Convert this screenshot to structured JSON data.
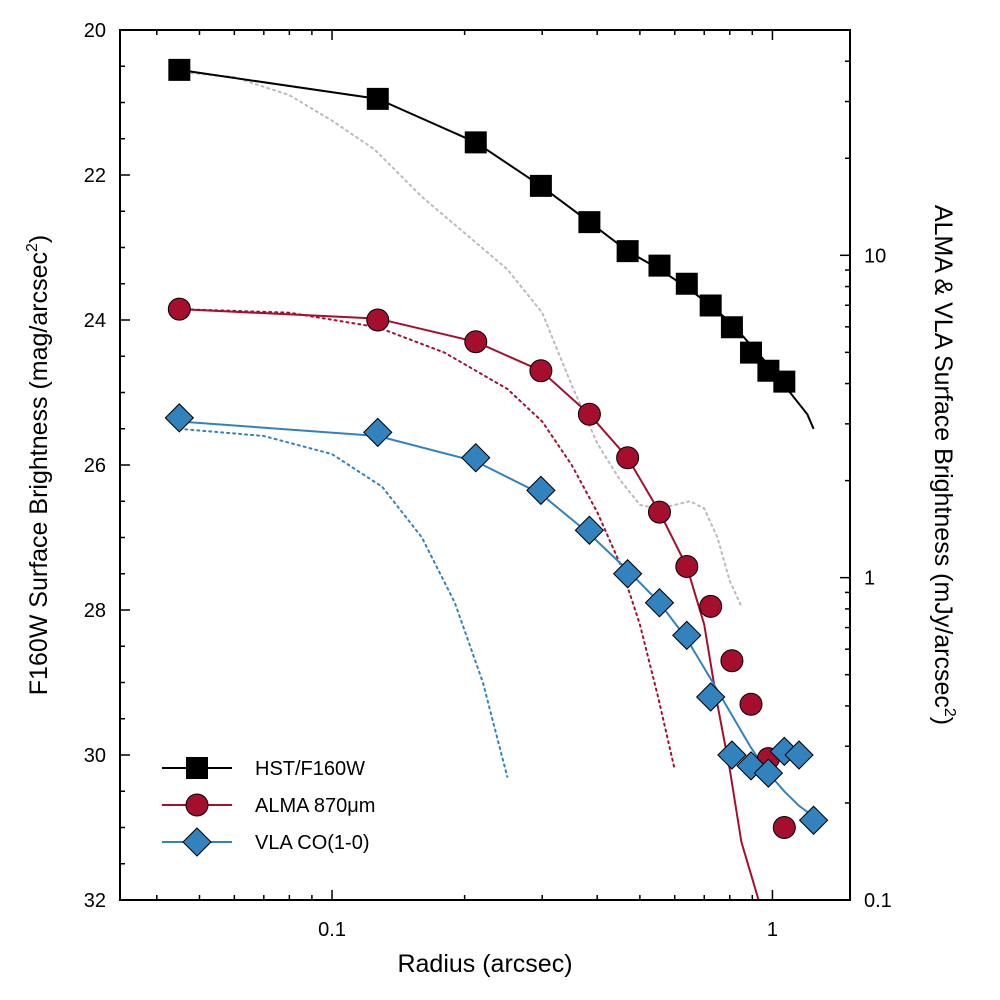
{
  "chart_data": {
    "type": "line",
    "xlabel": "Radius (arcsec)",
    "ylabel_left": "F160W Surface Brightness (mag/arcsec",
    "ylabel_left_sup": "2",
    "ylabel_left_end": ")",
    "ylabel_right": "ALMA & VLA Surface Brightness (mJy/arcsec",
    "ylabel_right_sup": "2",
    "ylabel_right_end": ")",
    "xscale": "log",
    "xlim": [
      0.033,
      1.5
    ],
    "ylim_left": [
      32,
      20
    ],
    "ylim_right": [
      0.1,
      50
    ],
    "x_ticks": [
      {
        "value": 0.1,
        "label": "0.1"
      },
      {
        "value": 1,
        "label": "1"
      }
    ],
    "y_left_ticks": [
      {
        "value": 20,
        "label": "20"
      },
      {
        "value": 22,
        "label": "22"
      },
      {
        "value": 24,
        "label": "24"
      },
      {
        "value": 26,
        "label": "26"
      },
      {
        "value": 28,
        "label": "28"
      },
      {
        "value": 30,
        "label": "30"
      },
      {
        "value": 32,
        "label": "32"
      }
    ],
    "y_right_ticks": [
      {
        "value": 0.1,
        "label": "0.1"
      },
      {
        "value": 1,
        "label": "1"
      },
      {
        "value": 10,
        "label": "10"
      }
    ],
    "legend_position": "bottom-left",
    "series": [
      {
        "name": "HST/F160W",
        "color": "#000000",
        "marker": "square",
        "points": [
          [
            0.045,
            20.55
          ],
          [
            0.127,
            20.95
          ],
          [
            0.212,
            21.55
          ],
          [
            0.298,
            22.15
          ],
          [
            0.384,
            22.65
          ],
          [
            0.469,
            23.05
          ],
          [
            0.554,
            23.25
          ],
          [
            0.639,
            23.5
          ],
          [
            0.724,
            23.8
          ],
          [
            0.809,
            24.1
          ],
          [
            0.894,
            24.45
          ],
          [
            0.979,
            24.7
          ],
          [
            1.064,
            24.85
          ]
        ],
        "fit": [
          [
            0.045,
            20.55
          ],
          [
            0.127,
            20.95
          ],
          [
            0.212,
            21.55
          ],
          [
            0.298,
            22.15
          ],
          [
            0.384,
            22.65
          ],
          [
            0.469,
            23.05
          ],
          [
            0.554,
            23.3
          ],
          [
            0.639,
            23.55
          ],
          [
            0.724,
            23.8
          ],
          [
            0.809,
            24.05
          ],
          [
            0.894,
            24.35
          ],
          [
            0.979,
            24.62
          ],
          [
            1.064,
            24.9
          ],
          [
            1.2,
            25.3
          ],
          [
            1.24,
            25.5
          ]
        ],
        "model": [
          [
            0.045,
            20.58
          ],
          [
            0.06,
            20.65
          ],
          [
            0.08,
            20.9
          ],
          [
            0.1,
            21.25
          ],
          [
            0.125,
            21.65
          ],
          [
            0.16,
            22.3
          ],
          [
            0.2,
            22.8
          ],
          [
            0.25,
            23.3
          ],
          [
            0.3,
            23.9
          ],
          [
            0.35,
            24.9
          ],
          [
            0.4,
            25.7
          ],
          [
            0.45,
            26.2
          ],
          [
            0.5,
            26.55
          ],
          [
            0.55,
            26.6
          ],
          [
            0.6,
            26.55
          ],
          [
            0.65,
            26.5
          ],
          [
            0.7,
            26.6
          ],
          [
            0.75,
            27.0
          ],
          [
            0.8,
            27.6
          ],
          [
            0.85,
            27.95
          ]
        ]
      },
      {
        "name": "ALMA 870μm",
        "color": "#a50f2d",
        "marker": "circle",
        "points": [
          [
            0.045,
            23.85
          ],
          [
            0.127,
            24.0
          ],
          [
            0.212,
            24.3
          ],
          [
            0.298,
            24.7
          ],
          [
            0.384,
            25.3
          ],
          [
            0.469,
            25.9
          ],
          [
            0.554,
            26.65
          ],
          [
            0.639,
            27.4
          ],
          [
            0.724,
            27.95
          ],
          [
            0.809,
            28.7
          ],
          [
            0.894,
            29.3
          ],
          [
            0.979,
            30.05
          ],
          [
            1.064,
            31.0
          ]
        ],
        "fit": [
          [
            0.045,
            23.85
          ],
          [
            0.127,
            23.98
          ],
          [
            0.212,
            24.3
          ],
          [
            0.298,
            24.7
          ],
          [
            0.384,
            25.3
          ],
          [
            0.469,
            25.9
          ],
          [
            0.554,
            26.65
          ],
          [
            0.639,
            27.4
          ],
          [
            0.7,
            28.2
          ],
          [
            0.75,
            29.3
          ],
          [
            0.8,
            30.2
          ],
          [
            0.85,
            31.2
          ],
          [
            0.93,
            32.0
          ]
        ],
        "model": [
          [
            0.045,
            23.85
          ],
          [
            0.08,
            23.9
          ],
          [
            0.127,
            24.1
          ],
          [
            0.18,
            24.45
          ],
          [
            0.25,
            24.95
          ],
          [
            0.3,
            25.4
          ],
          [
            0.35,
            26.0
          ],
          [
            0.4,
            26.65
          ],
          [
            0.45,
            27.35
          ],
          [
            0.5,
            28.2
          ],
          [
            0.55,
            29.2
          ],
          [
            0.6,
            30.2
          ]
        ]
      },
      {
        "name": "VLA CO(1-0)",
        "color": "#3182bd",
        "marker": "diamond",
        "points": [
          [
            0.045,
            25.35
          ],
          [
            0.127,
            25.55
          ],
          [
            0.212,
            25.9
          ],
          [
            0.298,
            26.35
          ],
          [
            0.384,
            26.9
          ],
          [
            0.469,
            27.5
          ],
          [
            0.554,
            27.9
          ],
          [
            0.639,
            28.35
          ],
          [
            0.724,
            29.2
          ],
          [
            0.809,
            30.0
          ],
          [
            0.894,
            30.15
          ],
          [
            0.979,
            30.25
          ],
          [
            1.064,
            29.95
          ],
          [
            1.149,
            30.0
          ],
          [
            1.24,
            30.9
          ]
        ],
        "fit": [
          [
            0.045,
            25.4
          ],
          [
            0.127,
            25.6
          ],
          [
            0.212,
            25.95
          ],
          [
            0.298,
            26.4
          ],
          [
            0.384,
            26.95
          ],
          [
            0.469,
            27.45
          ],
          [
            0.554,
            27.9
          ],
          [
            0.639,
            28.4
          ],
          [
            0.724,
            28.95
          ],
          [
            0.809,
            29.45
          ],
          [
            0.894,
            29.9
          ],
          [
            0.979,
            30.25
          ],
          [
            1.064,
            30.5
          ],
          [
            1.149,
            30.7
          ],
          [
            1.24,
            30.85
          ]
        ],
        "model": [
          [
            0.045,
            25.5
          ],
          [
            0.07,
            25.6
          ],
          [
            0.1,
            25.85
          ],
          [
            0.13,
            26.3
          ],
          [
            0.16,
            27.0
          ],
          [
            0.19,
            27.9
          ],
          [
            0.22,
            29.0
          ],
          [
            0.25,
            30.3
          ]
        ]
      }
    ]
  }
}
